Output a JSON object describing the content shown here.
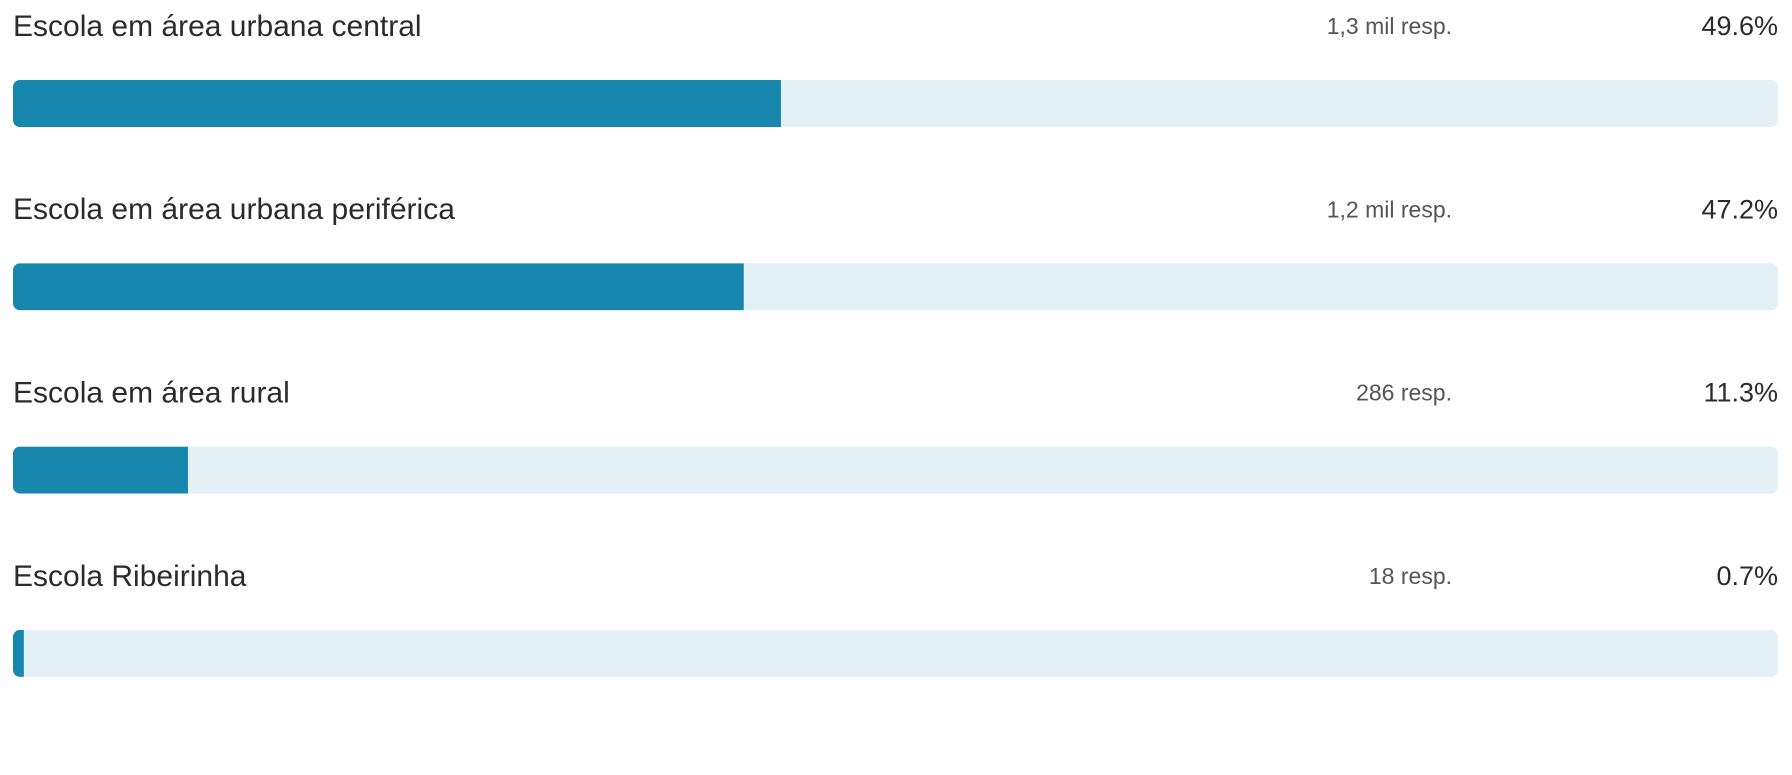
{
  "chart_data": {
    "type": "bar",
    "orientation": "horizontal",
    "categories": [
      "Escola em área urbana central",
      "Escola em área urbana periférica",
      "Escola em área rural",
      "Escola Ribeirinha"
    ],
    "values": [
      49.6,
      47.2,
      11.3,
      0.7
    ],
    "value_labels": [
      "49.6%",
      "47.2%",
      "11.3%",
      "0.7%"
    ],
    "response_labels": [
      "1,3 mil resp.",
      "1,2 mil resp.",
      "286 resp.",
      "18 resp."
    ],
    "color": "#1787ae",
    "track_color": "#e3f1f6",
    "xlim": [
      0,
      114
    ]
  }
}
